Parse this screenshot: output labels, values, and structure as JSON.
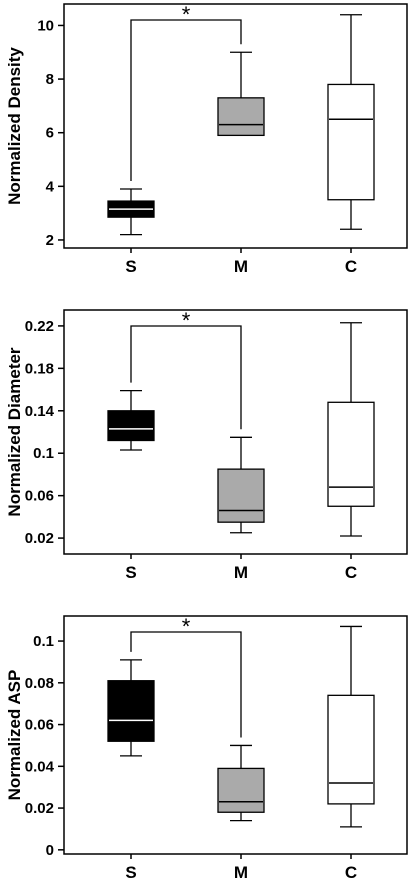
{
  "chart_data": [
    {
      "type": "box",
      "title": "",
      "ylabel": "Normalized Density",
      "categories": [
        "S",
        "M",
        "C"
      ],
      "yticks": [
        "2",
        "4",
        "6",
        "8",
        "10"
      ],
      "ylim": [
        1.7,
        10.8
      ],
      "boxes": [
        {
          "category": "S",
          "min": 2.2,
          "q1": 2.85,
          "median": 3.15,
          "q3": 3.45,
          "max": 3.9,
          "fill": "#000000",
          "median_color": "#ffffff"
        },
        {
          "category": "M",
          "min": 5.9,
          "q1": 5.9,
          "median": 6.3,
          "q3": 7.3,
          "max": 9.0,
          "fill": "#aaaaaa",
          "median_color": "#000000"
        },
        {
          "category": "C",
          "min": 2.4,
          "q1": 3.5,
          "median": 6.5,
          "q3": 7.8,
          "max": 10.4,
          "fill": "#ffffff",
          "median_color": "#000000"
        }
      ],
      "significance": {
        "from": "S",
        "to": "M",
        "label": "*"
      }
    },
    {
      "type": "box",
      "title": "",
      "ylabel": "Normalized Diameter",
      "categories": [
        "S",
        "M",
        "C"
      ],
      "yticks": [
        "0.02",
        "0.06",
        "0.1",
        "0.14",
        "0.18",
        "0.22"
      ],
      "ylim": [
        0.005,
        0.235
      ],
      "boxes": [
        {
          "category": "S",
          "min": 0.103,
          "q1": 0.112,
          "median": 0.123,
          "q3": 0.14,
          "max": 0.159,
          "fill": "#000000",
          "median_color": "#ffffff"
        },
        {
          "category": "M",
          "min": 0.025,
          "q1": 0.035,
          "median": 0.046,
          "q3": 0.085,
          "max": 0.115,
          "fill": "#aaaaaa",
          "median_color": "#000000"
        },
        {
          "category": "C",
          "min": 0.022,
          "q1": 0.05,
          "median": 0.068,
          "q3": 0.148,
          "max": 0.223,
          "fill": "#ffffff",
          "median_color": "#000000"
        }
      ],
      "significance": {
        "from": "S",
        "to": "M",
        "label": "*"
      }
    },
    {
      "type": "box",
      "title": "",
      "ylabel": "Normalized ASP",
      "categories": [
        "S",
        "M",
        "C"
      ],
      "yticks": [
        "0",
        "0.02",
        "0.04",
        "0.06",
        "0.08",
        "0.1"
      ],
      "ylim": [
        -0.002,
        0.112
      ],
      "boxes": [
        {
          "category": "S",
          "min": 0.045,
          "q1": 0.052,
          "median": 0.062,
          "q3": 0.081,
          "max": 0.091,
          "fill": "#000000",
          "median_color": "#ffffff"
        },
        {
          "category": "M",
          "min": 0.014,
          "q1": 0.018,
          "median": 0.023,
          "q3": 0.039,
          "max": 0.05,
          "fill": "#aaaaaa",
          "median_color": "#000000"
        },
        {
          "category": "C",
          "min": 0.011,
          "q1": 0.022,
          "median": 0.032,
          "q3": 0.074,
          "max": 0.107,
          "fill": "#ffffff",
          "median_color": "#000000"
        }
      ],
      "significance": {
        "from": "S",
        "to": "M",
        "label": "*"
      }
    }
  ]
}
